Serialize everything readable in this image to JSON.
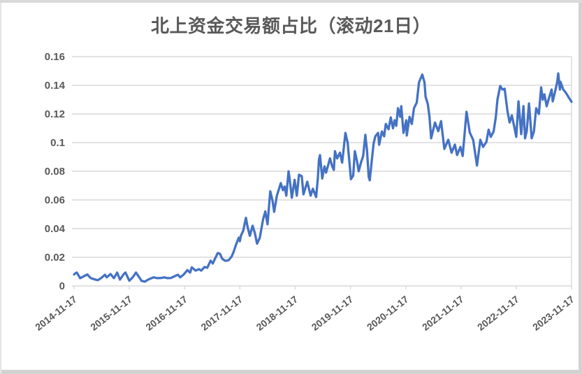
{
  "title": "北上资金交易额占比（滚动21日）",
  "chart_data": {
    "type": "line",
    "title": "北上资金交易额占比（滚动21日）",
    "series_name": "北上资金交易额占比（滚动21日）",
    "legend": "none",
    "grid": "horizontal",
    "x_unit": "years since 2014-11-17",
    "x_range": [
      0,
      9
    ],
    "x_tick_labels": [
      "2014-11-17",
      "2015-11-17",
      "2016-11-17",
      "2017-11-17",
      "2018-11-17",
      "2019-11-17",
      "2020-11-17",
      "2021-11-17",
      "2022-11-17",
      "2023-11-17"
    ],
    "ylim": [
      0,
      0.16
    ],
    "y_tick_interval": 0.02,
    "y_tick_labels": [
      "0",
      "0.02",
      "0.04",
      "0.06",
      "0.08",
      "0.1",
      "0.12",
      "0.14",
      "0.16"
    ],
    "colors": {
      "line": "#4472C4",
      "grid": "#D9D9D9",
      "text": "#595959",
      "background": "#FFFFFF",
      "frame_border": "#D2D2D2"
    },
    "points": [
      [
        0,
        0.008
      ],
      [
        0.03,
        0.009
      ],
      [
        0.05,
        0.0093
      ],
      [
        0.11,
        0.0054
      ],
      [
        0.18,
        0.0068
      ],
      [
        0.24,
        0.008
      ],
      [
        0.3,
        0.0055
      ],
      [
        0.37,
        0.0046
      ],
      [
        0.43,
        0.004
      ],
      [
        0.49,
        0.0055
      ],
      [
        0.56,
        0.0078
      ],
      [
        0.59,
        0.006
      ],
      [
        0.66,
        0.0083
      ],
      [
        0.72,
        0.0054
      ],
      [
        0.78,
        0.0093
      ],
      [
        0.83,
        0.0044
      ],
      [
        0.9,
        0.0083
      ],
      [
        0.93,
        0.0093
      ],
      [
        1,
        0.0036
      ],
      [
        1.06,
        0.006
      ],
      [
        1.12,
        0.0093
      ],
      [
        1.19,
        0.0054
      ],
      [
        1.22,
        0.0036
      ],
      [
        1.28,
        0.003
      ],
      [
        1.34,
        0.0044
      ],
      [
        1.4,
        0.0054
      ],
      [
        1.44,
        0.006
      ],
      [
        1.5,
        0.0054
      ],
      [
        1.57,
        0.0055
      ],
      [
        1.63,
        0.006
      ],
      [
        1.69,
        0.0054
      ],
      [
        1.75,
        0.0055
      ],
      [
        1.82,
        0.0068
      ],
      [
        1.88,
        0.0078
      ],
      [
        1.92,
        0.006
      ],
      [
        1.98,
        0.0078
      ],
      [
        2.05,
        0.011
      ],
      [
        2.1,
        0.0093
      ],
      [
        2.13,
        0.013
      ],
      [
        2.2,
        0.0107
      ],
      [
        2.26,
        0.0117
      ],
      [
        2.3,
        0.0107
      ],
      [
        2.36,
        0.0132
      ],
      [
        2.41,
        0.0127
      ],
      [
        2.47,
        0.0176
      ],
      [
        2.51,
        0.0156
      ],
      [
        2.55,
        0.019
      ],
      [
        2.6,
        0.023
      ],
      [
        2.64,
        0.0224
      ],
      [
        2.68,
        0.019
      ],
      [
        2.73,
        0.0176
      ],
      [
        2.77,
        0.0176
      ],
      [
        2.8,
        0.0181
      ],
      [
        2.85,
        0.0205
      ],
      [
        2.89,
        0.024
      ],
      [
        2.93,
        0.0288
      ],
      [
        2.98,
        0.0337
      ],
      [
        3,
        0.0312
      ],
      [
        3.02,
        0.0351
      ],
      [
        3.06,
        0.0385
      ],
      [
        3.11,
        0.0475
      ],
      [
        3.14,
        0.041
      ],
      [
        3.18,
        0.035
      ],
      [
        3.23,
        0.042
      ],
      [
        3.27,
        0.037
      ],
      [
        3.31,
        0.0295
      ],
      [
        3.36,
        0.0335
      ],
      [
        3.42,
        0.0466
      ],
      [
        3.46,
        0.052
      ],
      [
        3.5,
        0.043
      ],
      [
        3.55,
        0.066
      ],
      [
        3.59,
        0.0596
      ],
      [
        3.62,
        0.0517
      ],
      [
        3.67,
        0.063
      ],
      [
        3.74,
        0.0717
      ],
      [
        3.78,
        0.0668
      ],
      [
        3.81,
        0.0693
      ],
      [
        3.84,
        0.063
      ],
      [
        3.88,
        0.08
      ],
      [
        3.9,
        0.075
      ],
      [
        3.94,
        0.0615
      ],
      [
        3.99,
        0.074
      ],
      [
        4.03,
        0.063
      ],
      [
        4.07,
        0.0776
      ],
      [
        4.12,
        0.0766
      ],
      [
        4.15,
        0.0639
      ],
      [
        4.22,
        0.0727
      ],
      [
        4.28,
        0.063
      ],
      [
        4.32,
        0.0678
      ],
      [
        4.38,
        0.062
      ],
      [
        4.41,
        0.075
      ],
      [
        4.43,
        0.088
      ],
      [
        4.45,
        0.0913
      ],
      [
        4.49,
        0.075
      ],
      [
        4.53,
        0.0834
      ],
      [
        4.56,
        0.079
      ],
      [
        4.63,
        0.089
      ],
      [
        4.67,
        0.0835
      ],
      [
        4.7,
        0.081
      ],
      [
        4.72,
        0.094
      ],
      [
        4.76,
        0.089
      ],
      [
        4.81,
        0.093
      ],
      [
        4.85,
        0.086
      ],
      [
        4.91,
        0.1068
      ],
      [
        4.95,
        0.1
      ],
      [
        4.98,
        0.087
      ],
      [
        5.01,
        0.0745
      ],
      [
        5.05,
        0.077
      ],
      [
        5.08,
        0.094
      ],
      [
        5.12,
        0.087
      ],
      [
        5.15,
        0.08
      ],
      [
        5.19,
        0.086
      ],
      [
        5.23,
        0.0907
      ],
      [
        5.27,
        0.1054
      ],
      [
        5.3,
        0.0946
      ],
      [
        5.33,
        0.0761
      ],
      [
        5.35,
        0.0737
      ],
      [
        5.39,
        0.0888
      ],
      [
        5.42,
        0.0995
      ],
      [
        5.45,
        0.1044
      ],
      [
        5.5,
        0.1068
      ],
      [
        5.52,
        0.0985
      ],
      [
        5.57,
        0.1078
      ],
      [
        5.61,
        0.1044
      ],
      [
        5.64,
        0.113
      ],
      [
        5.69,
        0.1093
      ],
      [
        5.73,
        0.1176
      ],
      [
        5.77,
        0.11
      ],
      [
        5.8,
        0.1156
      ],
      [
        5.83,
        0.1117
      ],
      [
        5.86,
        0.124
      ],
      [
        5.9,
        0.118
      ],
      [
        5.92,
        0.1254
      ],
      [
        5.96,
        0.1068
      ],
      [
        6.01,
        0.1156
      ],
      [
        6.02,
        0.105
      ],
      [
        6.07,
        0.118
      ],
      [
        6.11,
        0.113
      ],
      [
        6.15,
        0.124
      ],
      [
        6.2,
        0.128
      ],
      [
        6.24,
        0.142
      ],
      [
        6.3,
        0.1475
      ],
      [
        6.34,
        0.142
      ],
      [
        6.36,
        0.132
      ],
      [
        6.4,
        0.127
      ],
      [
        6.43,
        0.118
      ],
      [
        6.46,
        0.103
      ],
      [
        6.53,
        0.114
      ],
      [
        6.59,
        0.108
      ],
      [
        6.64,
        0.115
      ],
      [
        6.7,
        0.0956
      ],
      [
        6.77,
        0.102
      ],
      [
        6.83,
        0.093
      ],
      [
        6.89,
        0.0986
      ],
      [
        6.93,
        0.0913
      ],
      [
        6.99,
        0.097
      ],
      [
        7.03,
        0.0907
      ],
      [
        7.1,
        0.1215
      ],
      [
        7.16,
        0.107
      ],
      [
        7.22,
        0.102
      ],
      [
        7.29,
        0.084
      ],
      [
        7.35,
        0.102
      ],
      [
        7.4,
        0.097
      ],
      [
        7.46,
        0.1005
      ],
      [
        7.5,
        0.109
      ],
      [
        7.54,
        0.104
      ],
      [
        7.59,
        0.1078
      ],
      [
        7.63,
        0.1176
      ],
      [
        7.66,
        0.13
      ],
      [
        7.71,
        0.1395
      ],
      [
        7.75,
        0.137
      ],
      [
        7.79,
        0.1376
      ],
      [
        7.84,
        0.1224
      ],
      [
        7.88,
        0.114
      ],
      [
        7.92,
        0.119
      ],
      [
        7.97,
        0.11
      ],
      [
        8,
        0.104
      ],
      [
        8.04,
        0.1288
      ],
      [
        8.09,
        0.1059
      ],
      [
        8.13,
        0.1254
      ],
      [
        8.16,
        0.103
      ],
      [
        8.19,
        0.108
      ],
      [
        8.23,
        0.1273
      ],
      [
        8.28,
        0.103
      ],
      [
        8.32,
        0.1078
      ],
      [
        8.36,
        0.124
      ],
      [
        8.41,
        0.12
      ],
      [
        8.45,
        0.1386
      ],
      [
        8.48,
        0.13
      ],
      [
        8.51,
        0.1337
      ],
      [
        8.55,
        0.1254
      ],
      [
        8.6,
        0.1322
      ],
      [
        8.64,
        0.137
      ],
      [
        8.66,
        0.1288
      ],
      [
        8.7,
        0.1352
      ],
      [
        8.74,
        0.142
      ],
      [
        8.76,
        0.1483
      ],
      [
        8.79,
        0.137
      ],
      [
        8.8,
        0.1425
      ],
      [
        8.85,
        0.137
      ],
      [
        8.89,
        0.1352
      ],
      [
        8.95,
        0.1315
      ],
      [
        9,
        0.1285
      ]
    ]
  }
}
